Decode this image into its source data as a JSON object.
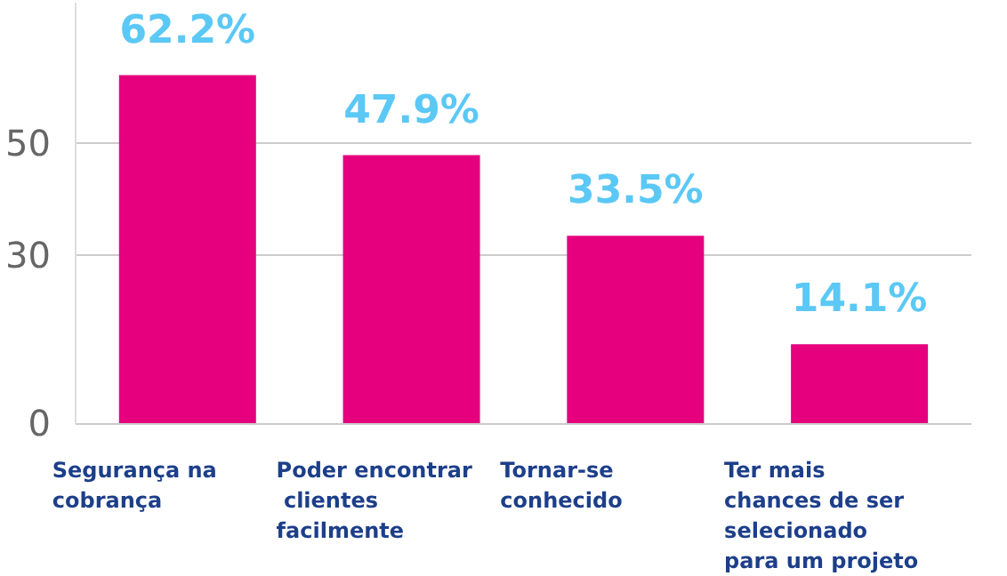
{
  "chart_data": {
    "type": "bar",
    "categories": [
      "Segurança na cobrança",
      "Poder encontrar clientes facilmente",
      "Tornar-se conhecido",
      "Ter mais chances de ser selecionado para um projeto"
    ],
    "values": [
      62.2,
      47.9,
      33.5,
      14.1
    ],
    "value_labels": [
      "62.2%",
      "47.9%",
      "33.5%",
      "14.1%"
    ],
    "color": "#e6007e",
    "ylim": [
      0,
      75
    ],
    "yticks": [
      0,
      30,
      50
    ],
    "grid": "y"
  }
}
